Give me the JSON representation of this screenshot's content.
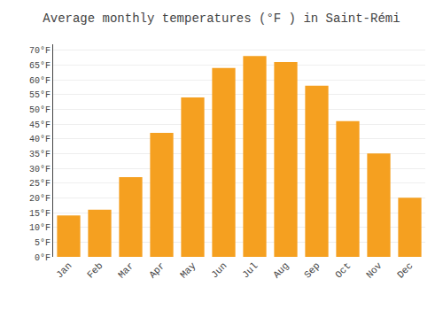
{
  "chart_data": {
    "type": "bar",
    "title": "Average monthly temperatures (°F ) in Saint-Rémi",
    "categories": [
      "Jan",
      "Feb",
      "Mar",
      "Apr",
      "May",
      "Jun",
      "Jul",
      "Aug",
      "Sep",
      "Oct",
      "Nov",
      "Dec"
    ],
    "values": [
      14,
      16,
      27,
      42,
      54,
      64,
      68,
      66,
      58,
      46,
      35,
      20
    ],
    "color": "#F5A020",
    "ylim": [
      0,
      72
    ],
    "yticks": [
      {
        "value": 0,
        "label": "0°F"
      },
      {
        "value": 5,
        "label": "5°F"
      },
      {
        "value": 10,
        "label": "10°F"
      },
      {
        "value": 15,
        "label": "15°F"
      },
      {
        "value": 20,
        "label": "20°F"
      },
      {
        "value": 25,
        "label": "25°F"
      },
      {
        "value": 30,
        "label": "30°F"
      },
      {
        "value": 35,
        "label": "35°F"
      },
      {
        "value": 40,
        "label": "40°F"
      },
      {
        "value": 45,
        "label": "45°F"
      },
      {
        "value": 50,
        "label": "50°F"
      },
      {
        "value": 55,
        "label": "55°F"
      },
      {
        "value": 60,
        "label": "60°F"
      },
      {
        "value": 65,
        "label": "65°F"
      },
      {
        "value": 70,
        "label": "70°F"
      }
    ],
    "grid": true
  }
}
